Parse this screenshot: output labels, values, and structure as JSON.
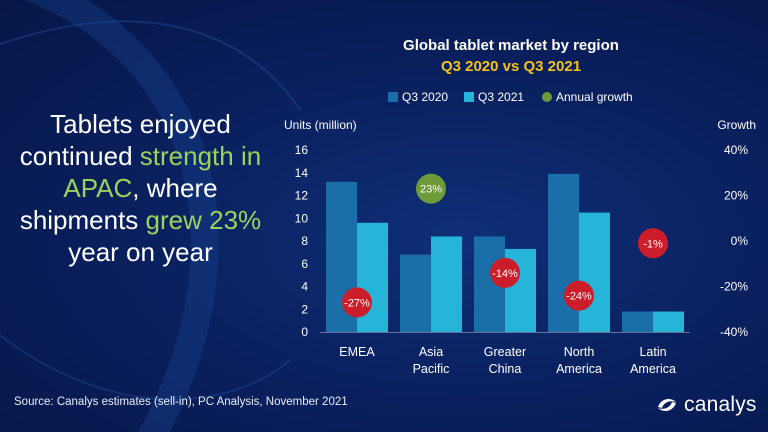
{
  "headline": {
    "part1": "Tablets enjoyed continued ",
    "highlight1": "strength in APAC",
    "part2": ", where shipments ",
    "highlight2": "grew 23%",
    "part3": " year on year"
  },
  "chart_data": {
    "type": "bar",
    "title": "Global tablet market by region",
    "subtitle": "Q3 2020 vs Q3 2021",
    "ylabel": "Units (million)",
    "y2label": "Growth",
    "ylim": [
      0,
      16
    ],
    "y_ticks": [
      "0",
      "2",
      "4",
      "6",
      "8",
      "10",
      "12",
      "14",
      "16"
    ],
    "y2lim": [
      -40,
      40
    ],
    "y2_ticks": [
      "-40%",
      "-20%",
      "0%",
      "20%",
      "40%"
    ],
    "categories": [
      [
        "EMEA"
      ],
      [
        "Asia",
        "Pacific"
      ],
      [
        "Greater",
        "China"
      ],
      [
        "North",
        "America"
      ],
      [
        "Latin",
        "America"
      ]
    ],
    "series": [
      {
        "name": "Q3 2020",
        "values": [
          13.2,
          6.8,
          8.4,
          13.9,
          1.8
        ]
      },
      {
        "name": "Q3 2021",
        "values": [
          9.6,
          8.4,
          7.3,
          10.5,
          1.8
        ]
      }
    ],
    "growth": {
      "name": "Annual growth",
      "values": [
        -27,
        23,
        -14,
        -24,
        -1
      ],
      "labels": [
        "-27%",
        "23%",
        "-14%",
        "-24%",
        "-1%"
      ]
    },
    "colors": {
      "q3_2020": "#1a6fa8",
      "q3_2021": "#26b5d8",
      "growth_positive": "#6f9a3a",
      "growth_negative": "#cc1e2a",
      "title": "#ffffff",
      "subtitle": "#f2c21b"
    },
    "legend_position": "top",
    "grid": false
  },
  "footer": {
    "source": "Source: Canalys estimates (sell-in), PC Analysis, November 2021",
    "brand": "canalys"
  }
}
